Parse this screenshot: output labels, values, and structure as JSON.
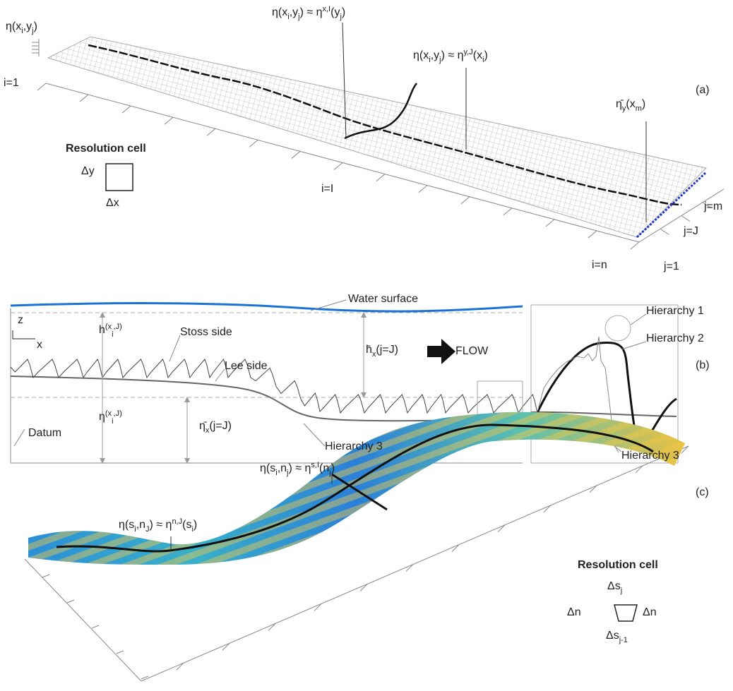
{
  "labels": [
    [
      "η(x",
      "i",
      ",y",
      "j",
      ")"
    ],
    [
      "i=1"
    ],
    [
      "η(x",
      "i",
      ",y",
      "j",
      ") ≈ η",
      "x,I",
      "(y",
      "j",
      ")"
    ],
    [
      "η(x",
      "i",
      ",y",
      "j",
      ") ≈ η",
      "y,J",
      "(x",
      "i",
      ")"
    ],
    [
      "(a)"
    ],
    [
      "η̄",
      "y",
      "(x",
      "m",
      ")"
    ],
    [
      "Resolution cell"
    ],
    [
      "Δy"
    ],
    [
      "Δx"
    ],
    [
      "i=I"
    ],
    [
      "j=m"
    ],
    [
      "j=J"
    ],
    [
      "i=n"
    ],
    [
      "j=1"
    ],
    [
      "Water surface"
    ],
    [
      "z"
    ],
    [
      "x"
    ],
    [
      "h",
      "(x",
      "i",
      ",J)"
    ],
    [
      "Stoss side"
    ],
    [
      "h̄",
      "x",
      "(j=J)"
    ],
    [
      "FLOW"
    ],
    [
      "Lee side"
    ],
    [
      "(b)"
    ],
    [
      "η",
      "(x",
      "i",
      ",J)"
    ],
    [
      "η̄",
      "x",
      "(j=J)"
    ],
    [
      "Datum"
    ],
    [
      "Hierarchy 3"
    ],
    [
      "Hierarchy 1"
    ],
    [
      "Hierarchy 2"
    ],
    [
      "Hierarchy 3"
    ],
    [
      "η(s",
      "i",
      ",n",
      "j",
      ") ≈ η",
      "s,I",
      "(n",
      "j",
      ")"
    ],
    [
      "η(s",
      "i",
      ",n",
      "J",
      ") ≈ η",
      "n,J",
      "(s",
      "i",
      ")"
    ],
    [
      "(c)"
    ],
    [
      "Resolution cell"
    ],
    [
      "Δs",
      "j"
    ],
    [
      "Δn"
    ],
    [
      "Δn"
    ],
    [
      "Δs",
      "j-1"
    ]
  ]
}
